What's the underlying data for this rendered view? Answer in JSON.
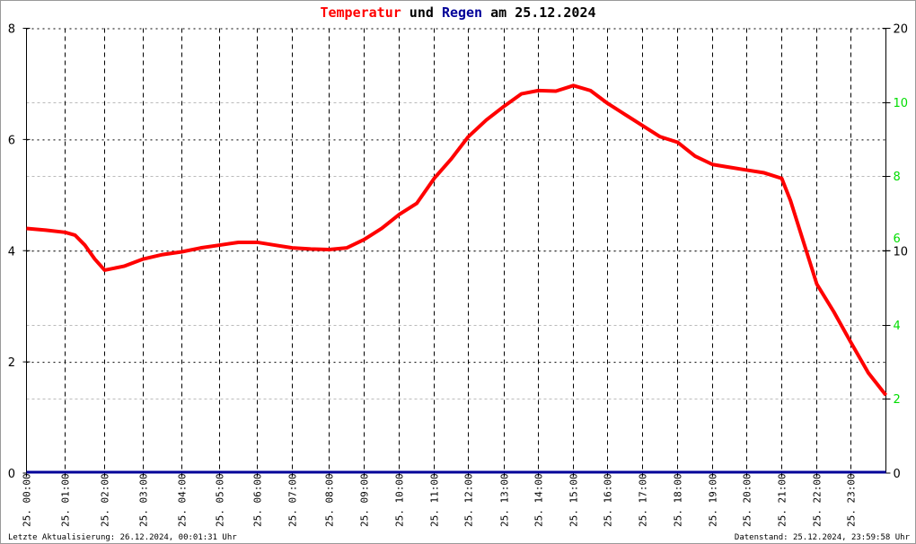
{
  "title": {
    "part1": "Temperatur",
    "part2": " und ",
    "part3": "Regen",
    "part4": " am 25.12.2024"
  },
  "footer": {
    "left": "Letzte Aktualisierung: 26.12.2024, 00:01:31 Uhr",
    "right": "Datenstand: 25.12.2024, 23:59:58 Uhr"
  },
  "colors": {
    "temperature": "#ff0000",
    "rain": "#000099",
    "right_axis_secondary": "#00dd00"
  },
  "chart_data": {
    "type": "line",
    "grid": true,
    "x_tick_labels": [
      "25. 00:00",
      "25. 01:00",
      "25. 02:00",
      "25. 03:00",
      "25. 04:00",
      "25. 05:00",
      "25. 06:00",
      "25. 07:00",
      "25. 08:00",
      "25. 09:00",
      "25. 10:00",
      "25. 11:00",
      "25. 12:00",
      "25. 13:00",
      "25. 14:00",
      "25. 15:00",
      "25. 16:00",
      "25. 17:00",
      "25. 18:00",
      "25. 19:00",
      "25. 20:00",
      "25. 21:00",
      "25. 22:00",
      "25. 23:00"
    ],
    "y_left": {
      "range": [
        0,
        8
      ],
      "ticks": [
        "0",
        "2",
        "4",
        "6",
        "8"
      ]
    },
    "y_right_black": {
      "range": [
        0,
        20
      ],
      "ticks": [
        "0",
        "10",
        "20"
      ]
    },
    "y_right_green": {
      "ticks": [
        "2",
        "4",
        "6",
        "8",
        "10"
      ]
    },
    "series": [
      {
        "name": "Temperatur",
        "axis": "left",
        "x_hours": [
          0,
          0.5,
          1,
          1.25,
          1.5,
          1.75,
          2,
          2.5,
          3,
          3.5,
          4,
          4.5,
          5,
          5.5,
          6,
          6.5,
          7,
          7.5,
          8,
          8.5,
          9,
          9.5,
          10,
          10.5,
          11,
          11.5,
          12,
          12.5,
          13,
          13.5,
          14,
          14.5,
          15,
          15.5,
          16,
          16.5,
          17,
          17.5,
          18,
          18.5,
          19,
          19.5,
          20,
          20.5,
          21,
          21.25,
          21.5,
          21.75,
          22,
          22.5,
          23,
          23.5,
          24
        ],
        "values": [
          4.4,
          4.37,
          4.33,
          4.28,
          4.1,
          3.85,
          3.65,
          3.72,
          3.85,
          3.93,
          3.98,
          4.05,
          4.1,
          4.15,
          4.15,
          4.1,
          4.05,
          4.03,
          4.02,
          4.05,
          4.2,
          4.4,
          4.65,
          4.85,
          5.3,
          5.65,
          6.05,
          6.35,
          6.6,
          6.82,
          6.88,
          6.87,
          6.97,
          6.88,
          6.65,
          6.45,
          6.25,
          6.05,
          5.95,
          5.7,
          5.55,
          5.5,
          5.45,
          5.4,
          5.3,
          4.9,
          4.4,
          3.9,
          3.4,
          2.9,
          2.35,
          1.8,
          1.4
        ]
      },
      {
        "name": "Regen",
        "axis": "right",
        "x_hours": [
          0,
          24
        ],
        "values": [
          0,
          0
        ]
      }
    ]
  }
}
